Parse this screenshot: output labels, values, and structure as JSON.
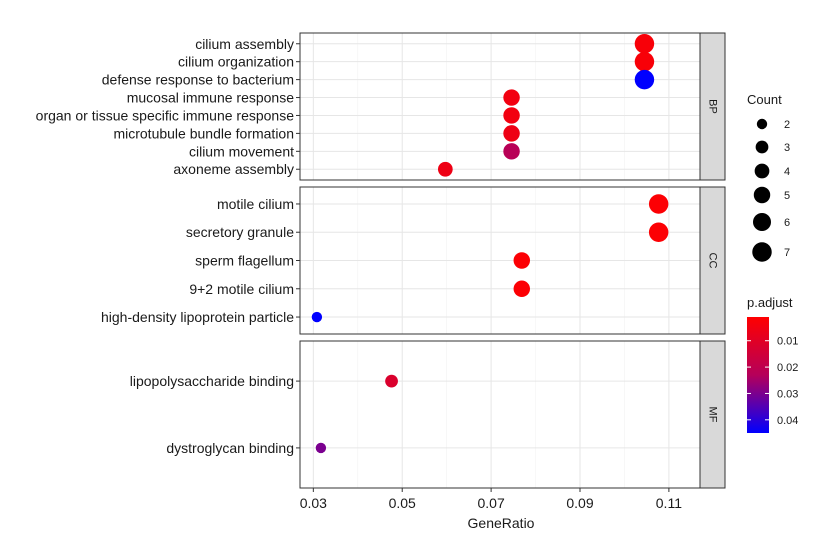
{
  "chart_data": {
    "type": "scatter",
    "xlabel": "GeneRatio",
    "xlim": [
      0.027,
      0.117
    ],
    "x_ticks": [
      0.03,
      0.05,
      0.07,
      0.09,
      0.11
    ],
    "x_tick_labels": [
      "0.03",
      "0.05",
      "0.07",
      "0.09",
      "0.11"
    ],
    "grid": true,
    "facets": [
      {
        "name": "BP",
        "terms": [
          {
            "label": "cilium assembly",
            "x": 0.1045,
            "count": 7,
            "p_adjust": 0.003
          },
          {
            "label": "cilium organization",
            "x": 0.1045,
            "count": 7,
            "p_adjust": 0.003
          },
          {
            "label": "defense response to bacterium",
            "x": 0.1045,
            "count": 7,
            "p_adjust": 0.045
          },
          {
            "label": "mucosal immune response",
            "x": 0.0746,
            "count": 5,
            "p_adjust": 0.005
          },
          {
            "label": "organ or tissue specific immune response",
            "x": 0.0746,
            "count": 5,
            "p_adjust": 0.005
          },
          {
            "label": "microtubule bundle formation",
            "x": 0.0746,
            "count": 5,
            "p_adjust": 0.006
          },
          {
            "label": "cilium movement",
            "x": 0.0746,
            "count": 5,
            "p_adjust": 0.022
          },
          {
            "label": "axoneme assembly",
            "x": 0.0597,
            "count": 4,
            "p_adjust": 0.006
          }
        ]
      },
      {
        "name": "CC",
        "terms": [
          {
            "label": "motile cilium",
            "x": 0.1077,
            "count": 7,
            "p_adjust": 0.002
          },
          {
            "label": "secretory granule",
            "x": 0.1077,
            "count": 7,
            "p_adjust": 0.002
          },
          {
            "label": "sperm flagellum",
            "x": 0.0769,
            "count": 5,
            "p_adjust": 0.002
          },
          {
            "label": "9+2 motile cilium",
            "x": 0.0769,
            "count": 5,
            "p_adjust": 0.002
          },
          {
            "label": "high-density lipoprotein particle",
            "x": 0.0308,
            "count": 2,
            "p_adjust": 0.045
          }
        ]
      },
      {
        "name": "MF",
        "terms": [
          {
            "label": "lipopolysaccharide binding",
            "x": 0.0476,
            "count": 3,
            "p_adjust": 0.012
          },
          {
            "label": "dystroglycan binding",
            "x": 0.0317,
            "count": 2,
            "p_adjust": 0.03
          }
        ]
      }
    ],
    "legend_size": {
      "title": "Count",
      "levels": [
        2,
        3,
        4,
        5,
        6,
        7
      ],
      "labels": [
        "2",
        "3",
        "4",
        "5",
        "6",
        "7"
      ]
    },
    "legend_color": {
      "title": "p.adjust",
      "range": [
        0.001,
        0.045
      ],
      "breaks": [
        0.01,
        0.02,
        0.03,
        0.04
      ],
      "labels": [
        "0.01",
        "0.02",
        "0.03",
        "0.04"
      ],
      "low_color": "#ff0000",
      "high_color": "#0000ff"
    }
  }
}
